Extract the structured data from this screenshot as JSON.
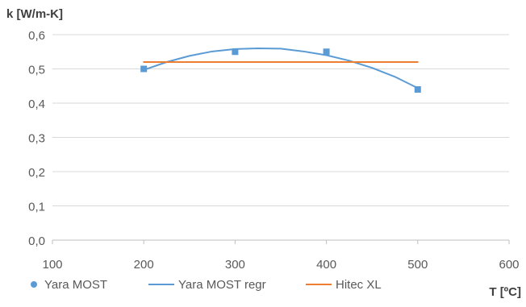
{
  "chart_data": {
    "type": "scatter",
    "ylabel": "k [W/m-K]",
    "xlabel": "T [ºC]",
    "xlim": [
      100,
      600
    ],
    "ylim": [
      0.0,
      0.6
    ],
    "x_ticks": [
      "100",
      "200",
      "300",
      "400",
      "500",
      "600"
    ],
    "y_ticks": [
      "0,0",
      "0,1",
      "0,2",
      "0,3",
      "0,4",
      "0,5",
      "0,6"
    ],
    "grid": "horizontal",
    "legend_position": "bottom",
    "series": [
      {
        "name": "Yara MOST",
        "kind": "markers",
        "color": "#5B9BD5",
        "x": [
          200,
          300,
          400,
          500
        ],
        "y": [
          0.5,
          0.55,
          0.55,
          0.44
        ]
      },
      {
        "name": "Yara MOST regr",
        "kind": "line",
        "color": "#5B9BD5",
        "x": [
          200,
          225,
          250,
          275,
          300,
          325,
          350,
          375,
          400,
          425,
          450,
          475,
          500
        ],
        "y": [
          0.497,
          0.52,
          0.538,
          0.551,
          0.558,
          0.56,
          0.559,
          0.551,
          0.54,
          0.524,
          0.503,
          0.477,
          0.444
        ]
      },
      {
        "name": "Hitec XL",
        "kind": "line",
        "color": "#ED7D31",
        "x": [
          200,
          500
        ],
        "y": [
          0.52,
          0.52
        ]
      }
    ]
  }
}
